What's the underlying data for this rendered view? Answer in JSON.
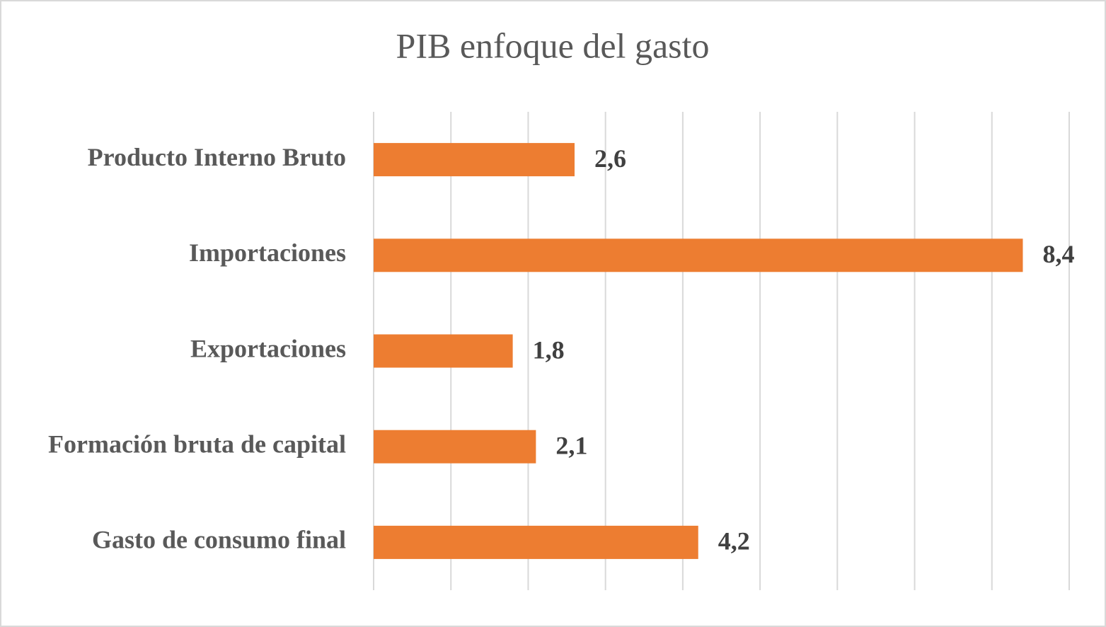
{
  "chart_data": {
    "type": "bar",
    "orientation": "horizontal",
    "title": "PIB enfoque del gasto",
    "categories": [
      "Producto Interno Bruto",
      "Importaciones",
      "Exportaciones",
      "Formación bruta de capital",
      "Gasto de consumo final"
    ],
    "values": [
      2.6,
      8.4,
      1.8,
      2.1,
      4.2
    ],
    "value_labels": [
      "2,6",
      "8,4",
      "1,8",
      "2,1",
      "4,2"
    ],
    "color": "#ed7d31",
    "xlim": [
      0,
      9
    ],
    "xticks": [
      0,
      1,
      2,
      3,
      4,
      5,
      6,
      7,
      8,
      9
    ],
    "grid": true
  }
}
